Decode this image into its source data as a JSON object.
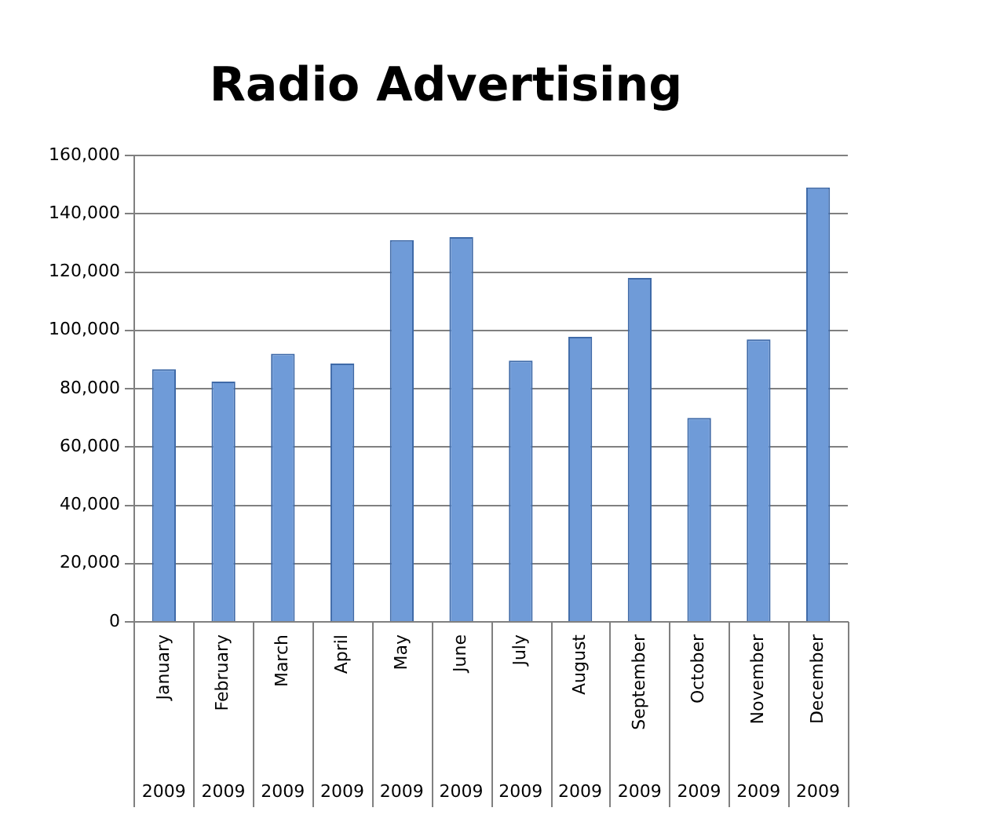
{
  "chart_data": {
    "type": "bar",
    "title": "Radio Advertising",
    "categories": [
      "January 2009",
      "February 2009",
      "March 2009",
      "April 2009",
      "May 2009",
      "June 2009",
      "July 2009",
      "August 2009",
      "September 2009",
      "October 2009",
      "November 2009",
      "December 2009"
    ],
    "values": [
      86700,
      82400,
      92000,
      88600,
      131000,
      132000,
      89600,
      97800,
      118000,
      70000,
      96900,
      149000
    ],
    "color": "#6f9bd8",
    "ylim": [
      0,
      160000
    ],
    "yticks": [
      0,
      {
        "value": 20000,
        "label": "20,000"
      },
      {
        "value": 40000,
        "label": "40,000"
      },
      {
        "value": 60000,
        "label": "60,000"
      },
      {
        "value": 80000,
        "label": "80,000"
      },
      {
        "value": 100000,
        "label": "100,000"
      },
      {
        "value": 120000,
        "label": "120,000"
      },
      {
        "value": 140000,
        "label": "140,000"
      },
      {
        "value": 160000,
        "label": "160,000"
      }
    ],
    "grid": "y"
  }
}
